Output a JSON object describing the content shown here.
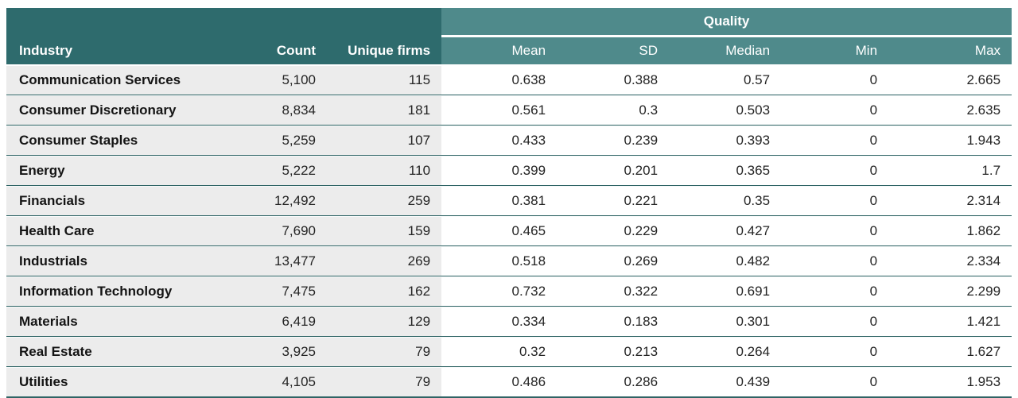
{
  "chart_data": {
    "type": "table",
    "group_header": "Quality",
    "group_header_span_columns": [
      "Mean",
      "SD",
      "Median",
      "Min",
      "Max"
    ],
    "columns": [
      "Industry",
      "Count",
      "Unique firms",
      "Mean",
      "SD",
      "Median",
      "Min",
      "Max"
    ],
    "rows": [
      [
        "Communication Services",
        "5,100",
        "115",
        "0.638",
        "0.388",
        "0.57",
        "0",
        "2.665"
      ],
      [
        "Consumer Discretionary",
        "8,834",
        "181",
        "0.561",
        "0.3",
        "0.503",
        "0",
        "2.635"
      ],
      [
        "Consumer Staples",
        "5,259",
        "107",
        "0.433",
        "0.239",
        "0.393",
        "0",
        "1.943"
      ],
      [
        "Energy",
        "5,222",
        "110",
        "0.399",
        "0.201",
        "0.365",
        "0",
        "1.7"
      ],
      [
        "Financials",
        "12,492",
        "259",
        "0.381",
        "0.221",
        "0.35",
        "0",
        "2.314"
      ],
      [
        "Health Care",
        "7,690",
        "159",
        "0.465",
        "0.229",
        "0.427",
        "0",
        "1.862"
      ],
      [
        "Industrials",
        "13,477",
        "269",
        "0.518",
        "0.269",
        "0.482",
        "0",
        "2.334"
      ],
      [
        "Information Technology",
        "7,475",
        "162",
        "0.732",
        "0.322",
        "0.691",
        "0",
        "2.299"
      ],
      [
        "Materials",
        "6,419",
        "129",
        "0.334",
        "0.183",
        "0.301",
        "0",
        "1.421"
      ],
      [
        "Real Estate",
        "3,925",
        "79",
        "0.32",
        "0.213",
        "0.264",
        "0",
        "1.627"
      ],
      [
        "Utilities",
        "4,105",
        "79",
        "0.486",
        "0.286",
        "0.439",
        "0",
        "1.953"
      ]
    ],
    "layout": {
      "numeric_alignment": "right",
      "grid": "horizontal-rules-only"
    },
    "colors": {
      "header_dark_teal": "#2e6b6d",
      "header_light_teal": "#4f8a8b",
      "row_background_left": "#ececec",
      "row_background_right": "#ffffff",
      "row_separator": "#2f6465",
      "header_text": "#ffffff",
      "body_text": "#242424"
    }
  }
}
